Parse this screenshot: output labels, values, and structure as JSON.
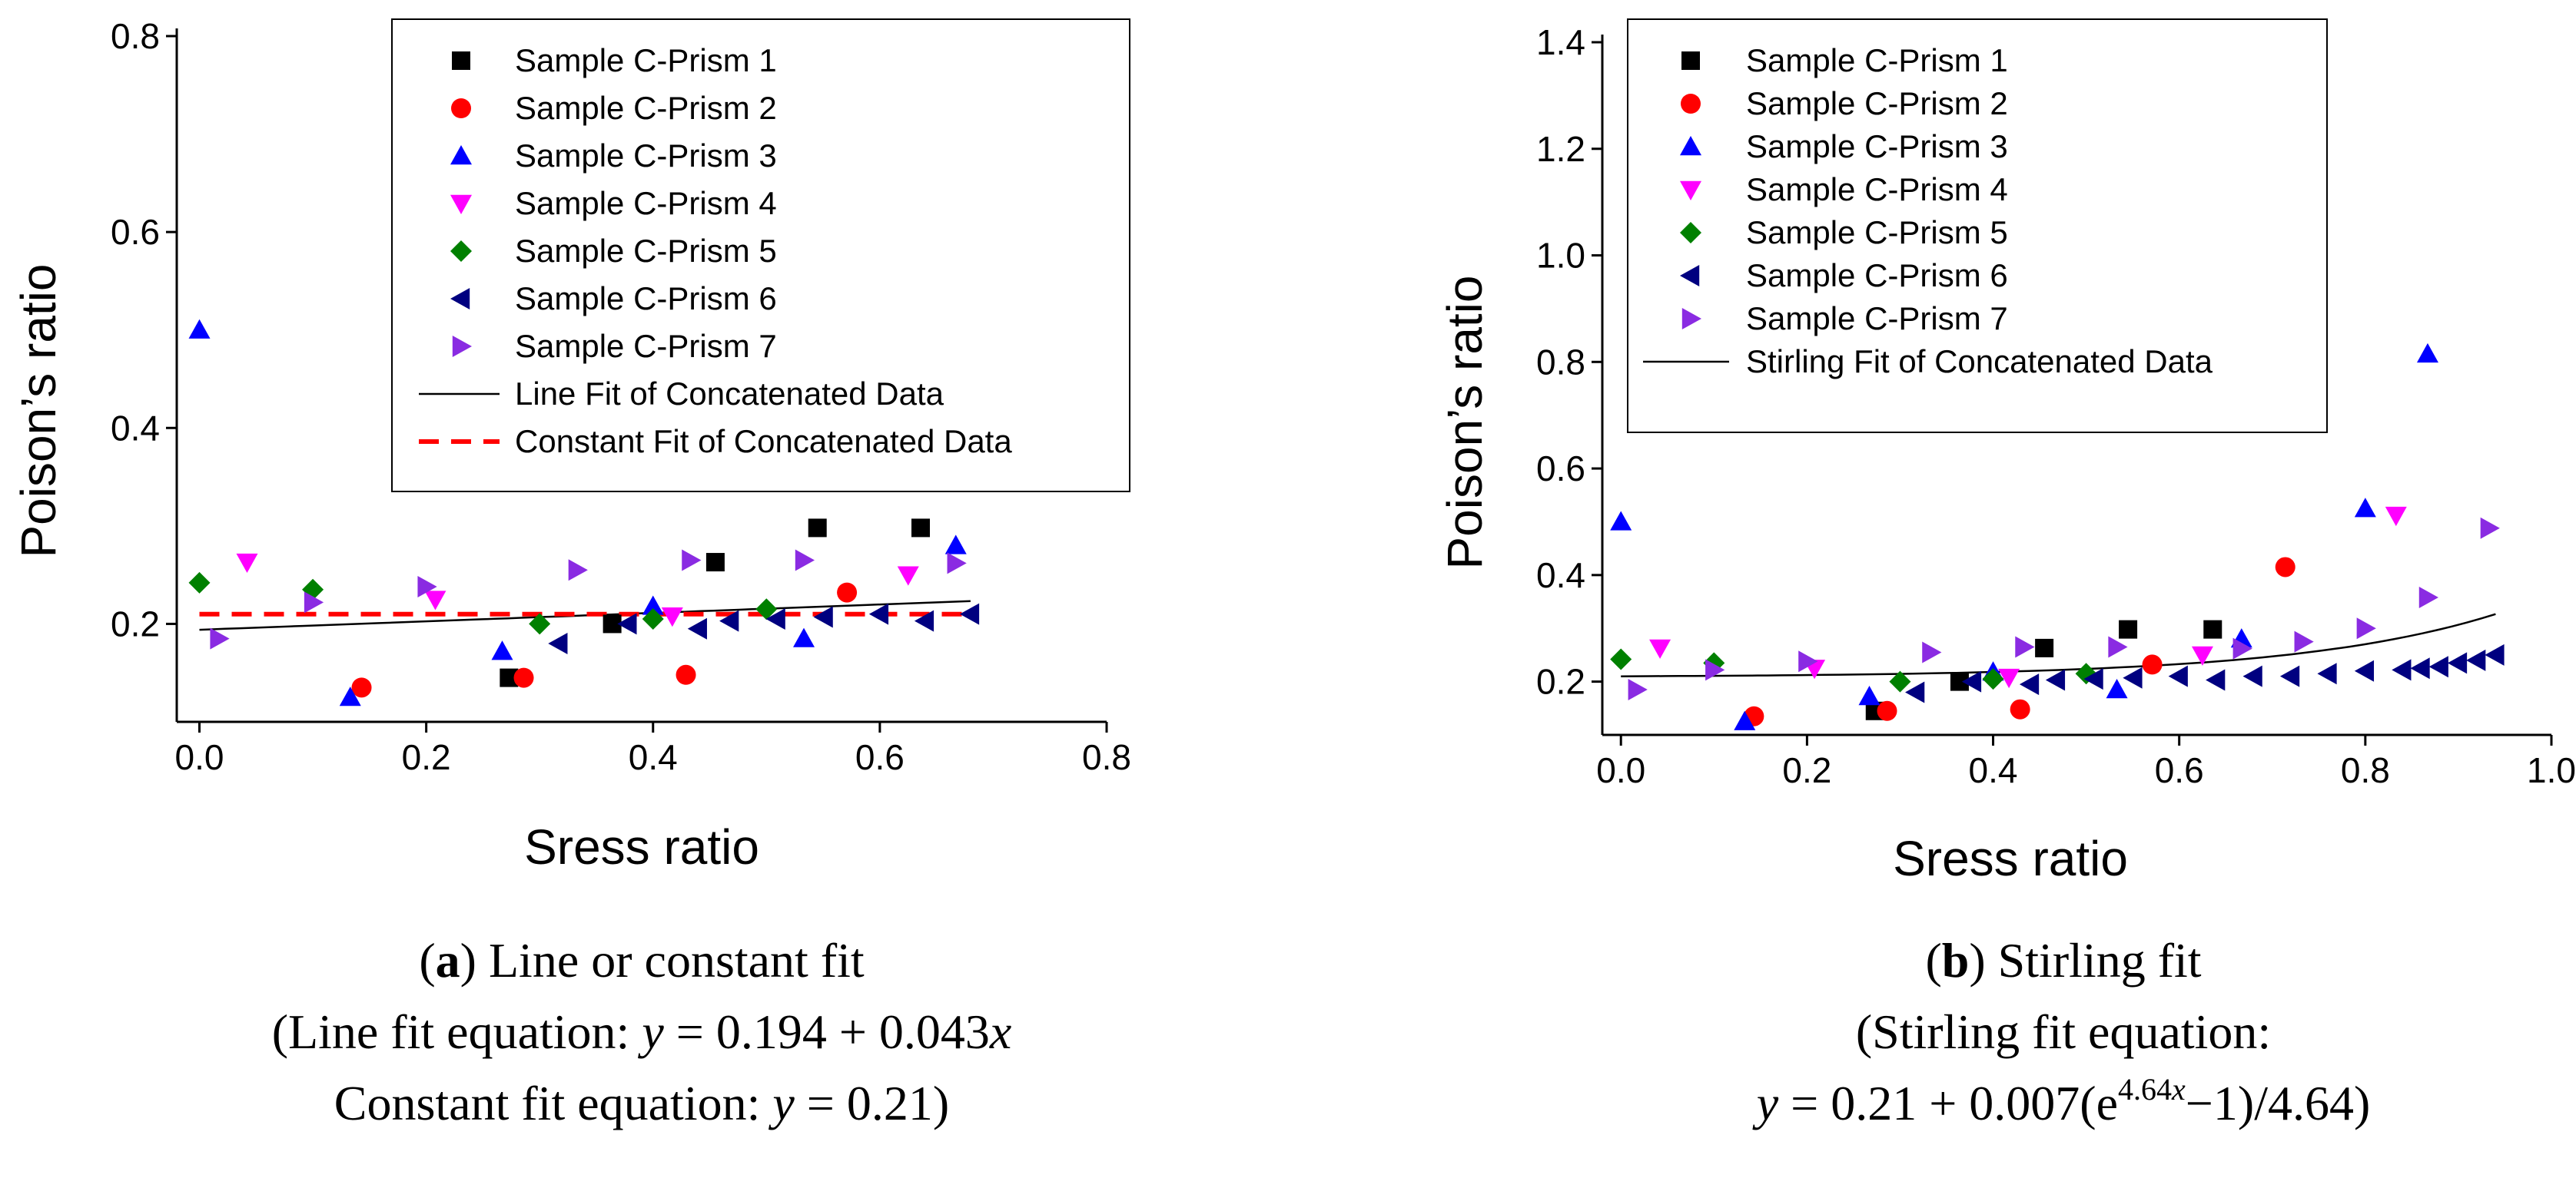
{
  "chart_data": [
    {
      "id": "a",
      "type": "scatter",
      "xlabel": "Sress ratio",
      "ylabel": "Poison’s ratio",
      "xlim": [
        -0.02,
        0.8
      ],
      "ylim": [
        0.1,
        0.8
      ],
      "xticks": [
        "0.0",
        "0.2",
        "0.4",
        "0.6",
        "0.8"
      ],
      "yticks": [
        "0.2",
        "0.4",
        "0.6",
        "0.8"
      ],
      "xtick_values": [
        0,
        0.2,
        0.4,
        0.6,
        0.8
      ],
      "ytick_values": [
        0.2,
        0.4,
        0.6,
        0.8
      ],
      "legend_position": "top-right",
      "series": [
        {
          "name": "Sample C-Prism 1",
          "marker": "square",
          "color": "#000000",
          "points": [
            [
              0.273,
              0.145
            ],
            [
              0.364,
              0.2
            ],
            [
              0.455,
              0.263
            ],
            [
              0.545,
              0.298
            ],
            [
              0.636,
              0.298
            ]
          ]
        },
        {
          "name": "Sample C-Prism 2",
          "marker": "circle",
          "color": "#ff0000",
          "points": [
            [
              0.143,
              0.135
            ],
            [
              0.286,
              0.145
            ],
            [
              0.429,
              0.148
            ],
            [
              0.571,
              0.232
            ]
          ]
        },
        {
          "name": "Sample C-Prism 3",
          "marker": "triangle-up",
          "color": "#0000ff",
          "points": [
            [
              0.0,
              0.5
            ],
            [
              0.133,
              0.125
            ],
            [
              0.267,
              0.172
            ],
            [
              0.4,
              0.218
            ],
            [
              0.533,
              0.185
            ],
            [
              0.667,
              0.28
            ]
          ]
        },
        {
          "name": "Sample C-Prism 4",
          "marker": "triangle-down",
          "color": "#ff00ff",
          "points": [
            [
              0.042,
              0.263
            ],
            [
              0.208,
              0.225
            ],
            [
              0.417,
              0.208
            ],
            [
              0.625,
              0.25
            ]
          ]
        },
        {
          "name": "Sample C-Prism 5",
          "marker": "diamond",
          "color": "#008000",
          "points": [
            [
              0.0,
              0.242
            ],
            [
              0.1,
              0.235
            ],
            [
              0.3,
              0.2
            ],
            [
              0.4,
              0.205
            ],
            [
              0.5,
              0.215
            ]
          ]
        },
        {
          "name": "Sample C-Prism 6",
          "marker": "triangle-left",
          "color": "#000080",
          "points": [
            [
              0.317,
              0.18
            ],
            [
              0.378,
              0.2
            ],
            [
              0.44,
              0.195
            ],
            [
              0.468,
              0.203
            ],
            [
              0.509,
              0.205
            ],
            [
              0.551,
              0.207
            ],
            [
              0.6,
              0.21
            ],
            [
              0.64,
              0.203
            ],
            [
              0.68,
              0.21
            ]
          ]
        },
        {
          "name": "Sample C-Prism 7",
          "marker": "triangle-right",
          "color": "#8a2be2",
          "points": [
            [
              0.017,
              0.185
            ],
            [
              0.1,
              0.222
            ],
            [
              0.2,
              0.238
            ],
            [
              0.333,
              0.255
            ],
            [
              0.433,
              0.265
            ],
            [
              0.533,
              0.265
            ],
            [
              0.667,
              0.262
            ]
          ]
        }
      ],
      "fits": [
        {
          "name": "Line Fit of Concatenated Data",
          "style": "solid",
          "color": "#000000",
          "kind": "line",
          "a": 0.194,
          "b": 0.043,
          "x_range": [
            0.0,
            0.68
          ]
        },
        {
          "name": "Constant Fit of Concatenated Data",
          "style": "dashed",
          "color": "#ff0000",
          "kind": "constant",
          "a": 0.21,
          "x_range": [
            0.0,
            0.68
          ]
        }
      ]
    },
    {
      "id": "b",
      "type": "scatter",
      "xlabel": "Sress ratio",
      "ylabel": "Poison’s ratio",
      "xlim": [
        -0.02,
        1.0
      ],
      "ylim": [
        0.1,
        1.4
      ],
      "xticks": [
        "0.0",
        "0.2",
        "0.4",
        "0.6",
        "0.8",
        "1.0"
      ],
      "yticks": [
        "0.2",
        "0.4",
        "0.6",
        "0.8",
        "1.0",
        "1.2",
        "1.4"
      ],
      "xtick_values": [
        0,
        0.2,
        0.4,
        0.6,
        0.8,
        1.0
      ],
      "ytick_values": [
        0.2,
        0.4,
        0.6,
        0.8,
        1.0,
        1.2,
        1.4
      ],
      "legend_position": "top-left",
      "series": [
        {
          "name": "Sample C-Prism 1",
          "marker": "square",
          "color": "#000000",
          "points": [
            [
              0.273,
              0.145
            ],
            [
              0.364,
              0.2
            ],
            [
              0.455,
              0.263
            ],
            [
              0.545,
              0.298
            ],
            [
              0.636,
              0.298
            ]
          ]
        },
        {
          "name": "Sample C-Prism 2",
          "marker": "circle",
          "color": "#ff0000",
          "points": [
            [
              0.143,
              0.135
            ],
            [
              0.286,
              0.145
            ],
            [
              0.429,
              0.148
            ],
            [
              0.571,
              0.232
            ],
            [
              0.714,
              0.415
            ]
          ]
        },
        {
          "name": "Sample C-Prism 3",
          "marker": "triangle-up",
          "color": "#0000ff",
          "points": [
            [
              0.0,
              0.5
            ],
            [
              0.133,
              0.125
            ],
            [
              0.267,
              0.172
            ],
            [
              0.4,
              0.218
            ],
            [
              0.533,
              0.185
            ],
            [
              0.667,
              0.28
            ],
            [
              0.8,
              0.525
            ],
            [
              0.867,
              0.815
            ]
          ]
        },
        {
          "name": "Sample C-Prism 4",
          "marker": "triangle-down",
          "color": "#ff00ff",
          "points": [
            [
              0.042,
              0.263
            ],
            [
              0.208,
              0.225
            ],
            [
              0.417,
              0.208
            ],
            [
              0.625,
              0.25
            ],
            [
              0.833,
              0.512
            ]
          ]
        },
        {
          "name": "Sample C-Prism 5",
          "marker": "diamond",
          "color": "#008000",
          "points": [
            [
              0.0,
              0.242
            ],
            [
              0.1,
              0.235
            ],
            [
              0.3,
              0.2
            ],
            [
              0.4,
              0.205
            ],
            [
              0.5,
              0.215
            ]
          ]
        },
        {
          "name": "Sample C-Prism 6",
          "marker": "triangle-left",
          "color": "#000080",
          "points": [
            [
              0.317,
              0.18
            ],
            [
              0.378,
              0.2
            ],
            [
              0.44,
              0.195
            ],
            [
              0.468,
              0.203
            ],
            [
              0.509,
              0.205
            ],
            [
              0.551,
              0.207
            ],
            [
              0.6,
              0.21
            ],
            [
              0.64,
              0.203
            ],
            [
              0.68,
              0.21
            ],
            [
              0.72,
              0.21
            ],
            [
              0.76,
              0.215
            ],
            [
              0.8,
              0.22
            ],
            [
              0.84,
              0.222
            ],
            [
              0.86,
              0.225
            ],
            [
              0.88,
              0.228
            ],
            [
              0.9,
              0.235
            ],
            [
              0.92,
              0.24
            ],
            [
              0.94,
              0.25
            ]
          ]
        },
        {
          "name": "Sample C-Prism 7",
          "marker": "triangle-right",
          "color": "#8a2be2",
          "points": [
            [
              0.017,
              0.185
            ],
            [
              0.1,
              0.222
            ],
            [
              0.2,
              0.238
            ],
            [
              0.333,
              0.255
            ],
            [
              0.433,
              0.265
            ],
            [
              0.533,
              0.265
            ],
            [
              0.667,
              0.262
            ],
            [
              0.733,
              0.275
            ],
            [
              0.8,
              0.3
            ],
            [
              0.867,
              0.358
            ],
            [
              0.933,
              0.488
            ]
          ]
        }
      ],
      "fits": [
        {
          "name": "Stirling Fit of Concatenated Data",
          "style": "solid",
          "color": "#000000",
          "kind": "stirling",
          "a": 0.21,
          "b": 0.007,
          "c": 4.64,
          "x_range": [
            0.0,
            0.94
          ]
        }
      ]
    }
  ],
  "captions": {
    "a": {
      "label": "a",
      "title": " Line or constant fit",
      "line2_prefix": "(Line fit equation: ",
      "line2_eq": " = 0.194 + 0.043",
      "line3_prefix": "Constant fit equation: ",
      "line3_eq": " = 0.21)"
    },
    "b": {
      "label": "b",
      "title": " Stirling fit",
      "line2": "(Stirling fit equation:",
      "line3_eq": " = 0.21 + 0.007(e",
      "exponent": "4.64",
      "line3_tail": "−1)/4.64)"
    },
    "var_y": "y",
    "var_x": "x"
  }
}
